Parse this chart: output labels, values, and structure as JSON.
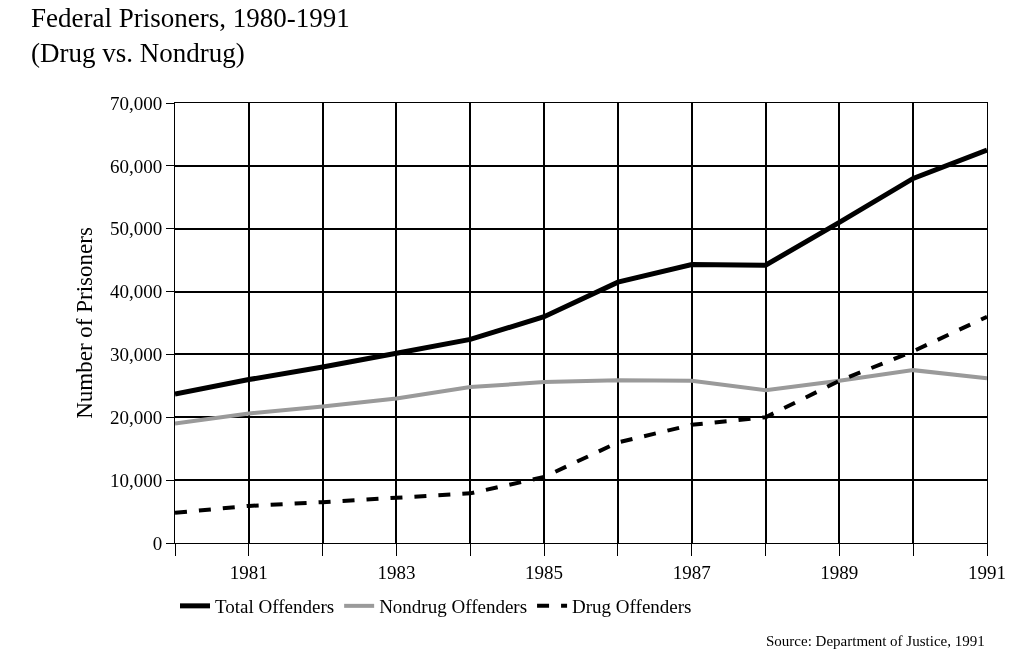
{
  "chart_data": {
    "type": "line",
    "title": "Federal Prisoners, 1980-1991\n(Drug vs. Nondrug)",
    "ylabel": "Number of Prisoners",
    "x": [
      1980,
      1981,
      1982,
      1983,
      1984,
      1985,
      1986,
      1987,
      1988,
      1989,
      1990,
      1991
    ],
    "series": [
      {
        "name": "Total Offenders",
        "color": "#000000",
        "line_style": "solid",
        "values": [
          23700,
          26000,
          28000,
          30200,
          32400,
          36000,
          41500,
          44300,
          44200,
          51000,
          58000,
          62500
        ]
      },
      {
        "name": "Nondrug Offenders",
        "color": "#9a9a9a",
        "line_style": "solid",
        "values": [
          19000,
          20600,
          21700,
          23000,
          24800,
          25600,
          25900,
          25800,
          24300,
          25800,
          27500,
          26200
        ]
      },
      {
        "name": "Drug Offenders",
        "color": "#000000",
        "line_style": "dashed",
        "values": [
          4800,
          5900,
          6500,
          7200,
          7900,
          10500,
          16000,
          18800,
          20000,
          25800,
          30500,
          36000
        ]
      }
    ],
    "xlim": [
      1980,
      1991
    ],
    "xticks": [
      {
        "value": 1980,
        "label": null
      },
      1981,
      {
        "value": 1982,
        "label": null
      },
      1983,
      {
        "value": 1984,
        "label": null
      },
      1985,
      {
        "value": 1986,
        "label": null
      },
      1987,
      {
        "value": 1988,
        "label": null
      },
      1989,
      {
        "value": 1990,
        "label": null
      },
      1991
    ],
    "ylim": [
      0,
      70000
    ],
    "yticks": [
      {
        "value": 0,
        "label": "0"
      },
      {
        "value": 10000,
        "label": "10,000"
      },
      {
        "value": 20000,
        "label": "20,000"
      },
      {
        "value": 30000,
        "label": "30,000"
      },
      {
        "value": 40000,
        "label": "40,000"
      },
      {
        "value": 50000,
        "label": "50,000"
      },
      {
        "value": 60000,
        "label": "60,000"
      },
      {
        "value": 70000,
        "label": "70,000"
      }
    ],
    "grid": true,
    "legend": "bottom",
    "marker": "none",
    "annotations": [
      "Source: Department of Justice, 1991"
    ]
  }
}
